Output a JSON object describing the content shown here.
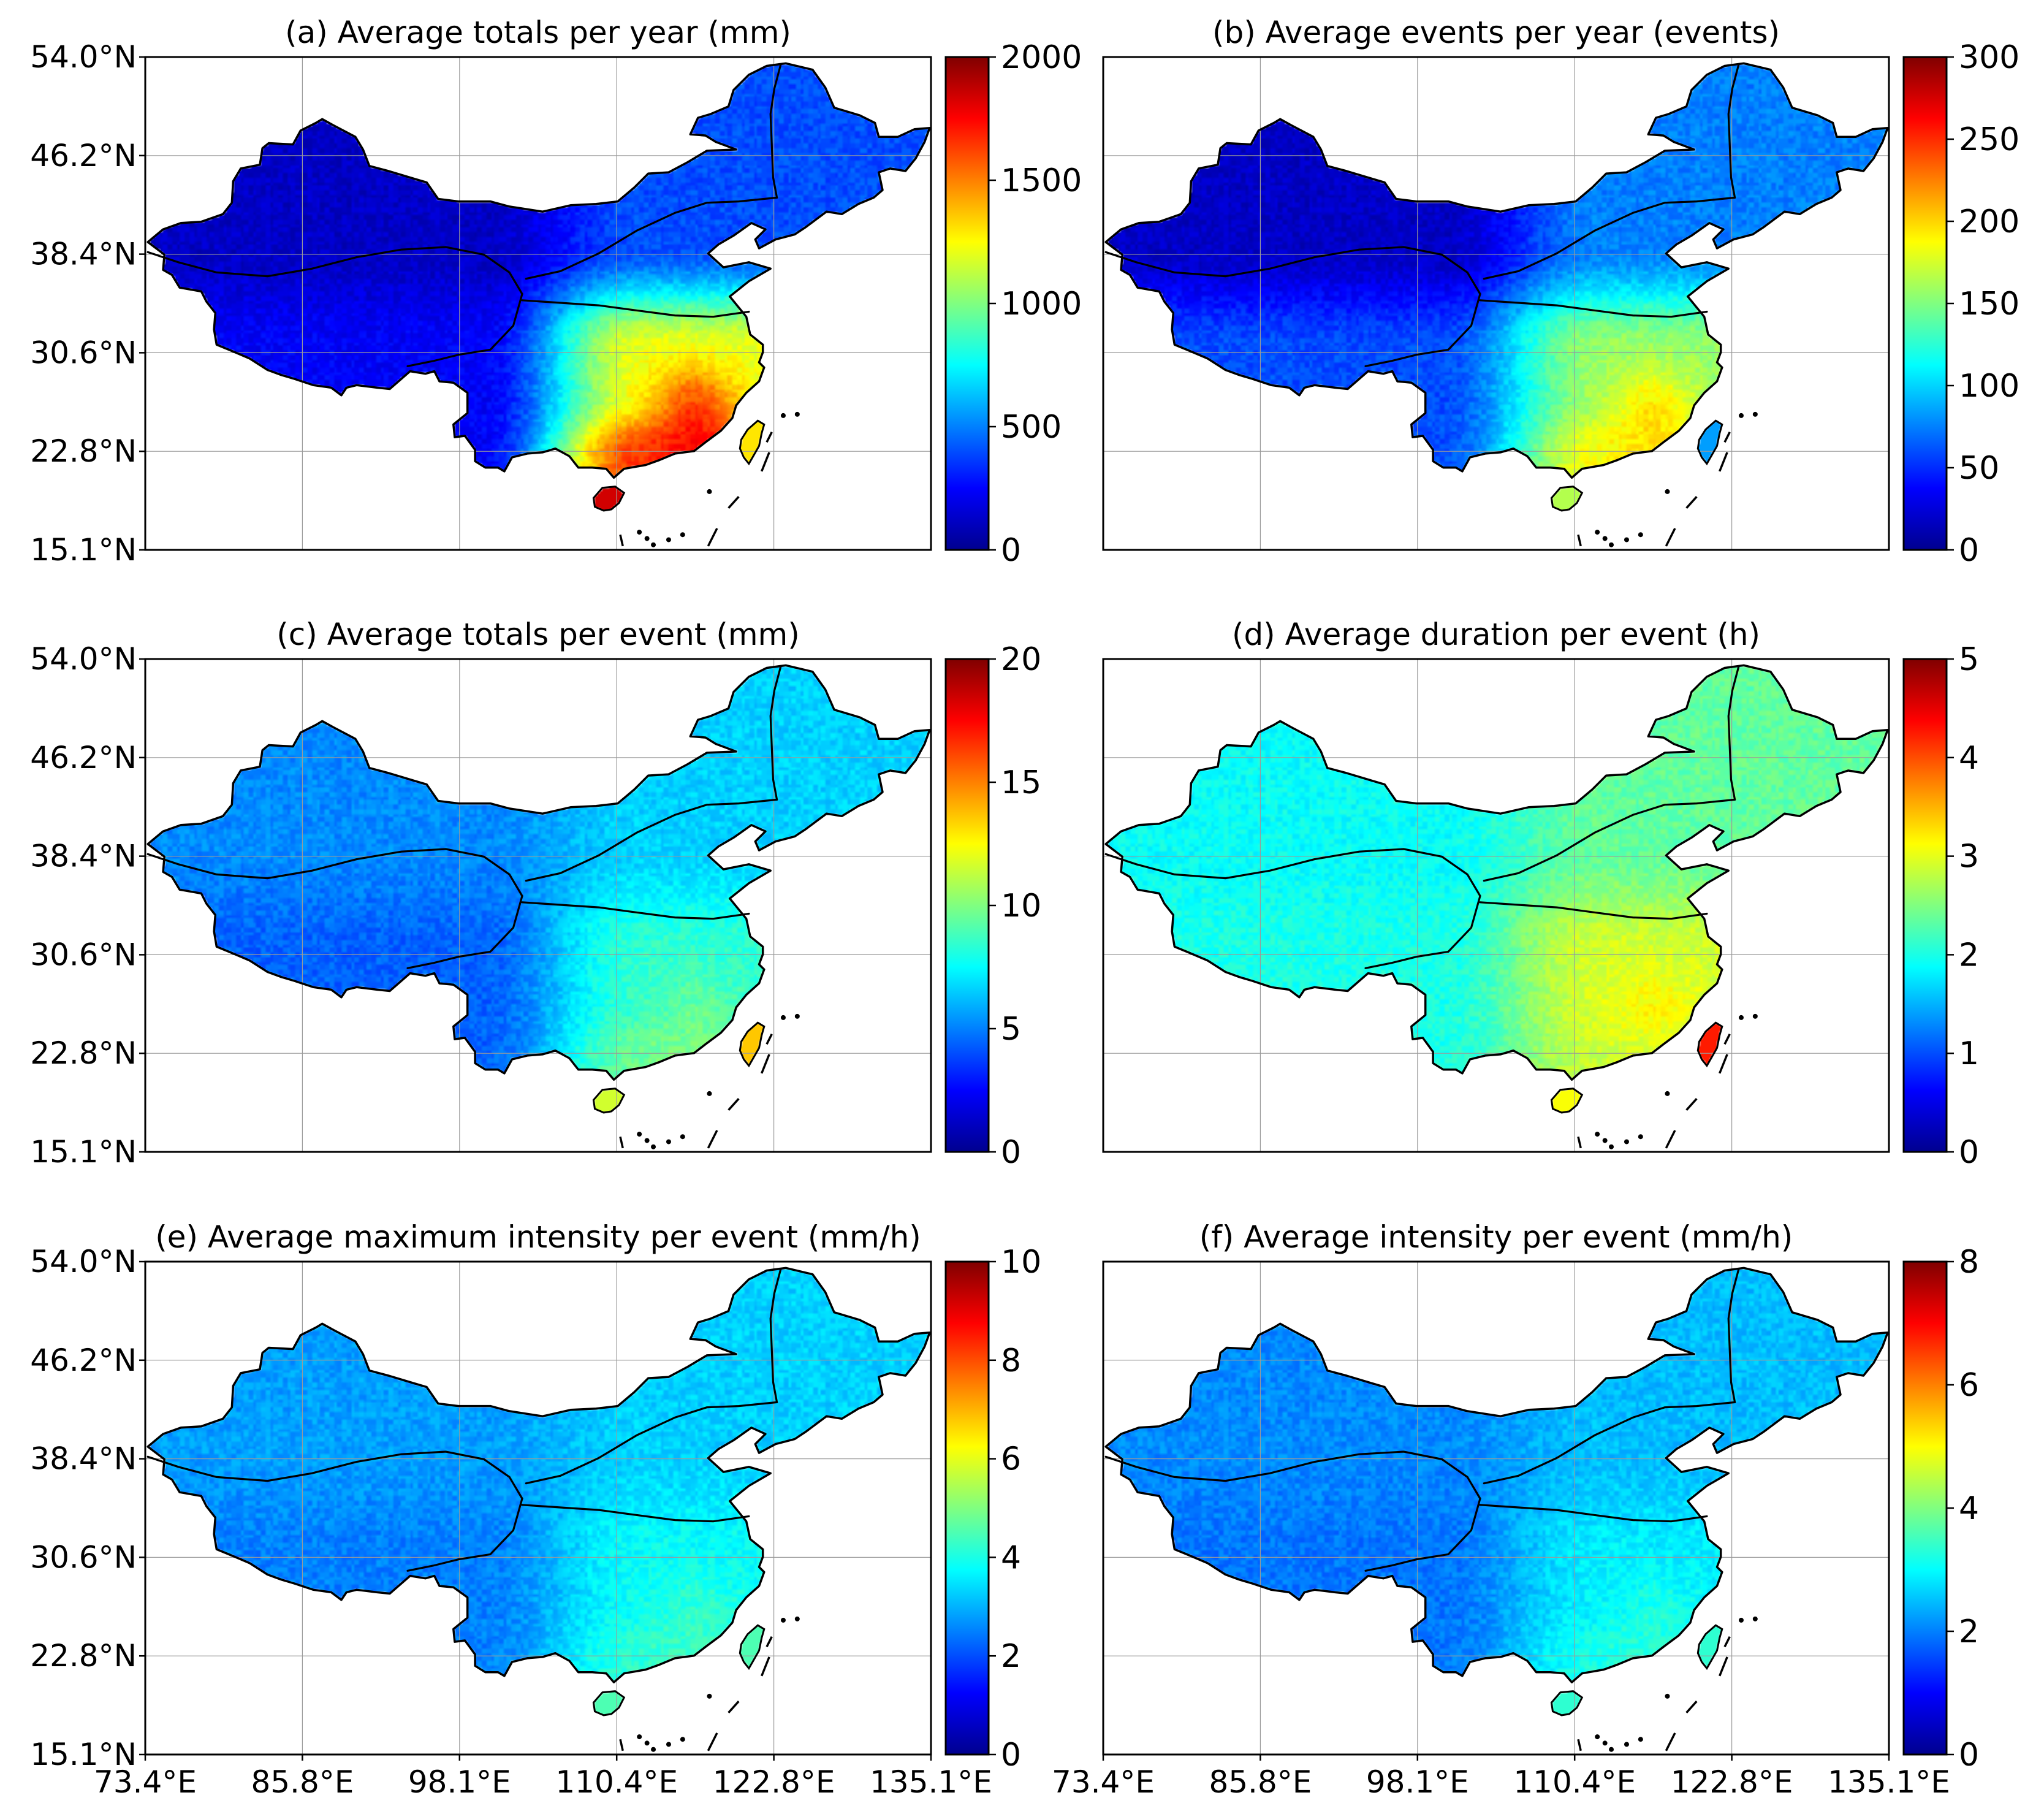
{
  "figure": {
    "colormap": [
      "#00008f",
      "#0000ff",
      "#0080ff",
      "#00ffff",
      "#80ff80",
      "#ffff00",
      "#ff8000",
      "#ff0000",
      "#800000"
    ],
    "lat_ticks": [
      "54.0°N",
      "46.2°N",
      "38.4°N",
      "30.6°N",
      "22.8°N",
      "15.1°N"
    ],
    "lon_ticks": [
      "73.4°E",
      "85.8°E",
      "98.1°E",
      "110.4°E",
      "122.8°E",
      "135.1°E"
    ]
  },
  "chart_data": [
    {
      "type": "heatmap",
      "panel": "a",
      "title": "(a) Average totals per year (mm)",
      "colorbar": {
        "min": 0,
        "max": 2000,
        "ticks": [
          "0",
          "500",
          "1000",
          "1500",
          "2000"
        ]
      },
      "field": {
        "nw": 0.06,
        "tibet": 0.12,
        "ne": 0.2,
        "se": 0.6,
        "south": 0.82,
        "taiwan": 0.65,
        "hainan": 0.92,
        "seHot": 0.2
      }
    },
    {
      "type": "heatmap",
      "panel": "b",
      "title": "(b) Average events per year (events)",
      "colorbar": {
        "min": 0,
        "max": 300,
        "ticks": [
          "0",
          "50",
          "100",
          "150",
          "200",
          "250",
          "300"
        ]
      },
      "field": {
        "nw": 0.06,
        "tibet": 0.2,
        "ne": 0.25,
        "se": 0.52,
        "south": 0.62,
        "taiwan": 0.28,
        "hainan": 0.55,
        "seHot": 0.12
      }
    },
    {
      "type": "heatmap",
      "panel": "c",
      "title": "(c) Average totals per event (mm)",
      "colorbar": {
        "min": 0,
        "max": 20,
        "ticks": [
          "0",
          "5",
          "10",
          "15",
          "20"
        ]
      },
      "field": {
        "nw": 0.26,
        "tibet": 0.22,
        "ne": 0.33,
        "se": 0.42,
        "south": 0.48,
        "taiwan": 0.68,
        "hainan": 0.58,
        "seHot": 0.05
      }
    },
    {
      "type": "heatmap",
      "panel": "d",
      "title": "(d) Average duration per event (h)",
      "colorbar": {
        "min": 0,
        "max": 5,
        "ticks": [
          "0",
          "1",
          "2",
          "3",
          "4",
          "5"
        ]
      },
      "field": {
        "nw": 0.38,
        "tibet": 0.4,
        "ne": 0.47,
        "se": 0.58,
        "south": 0.57,
        "taiwan": 0.85,
        "hainan": 0.62,
        "seHot": 0.05
      }
    },
    {
      "type": "heatmap",
      "panel": "e",
      "title": "(e) Average maximum intensity per event (mm/h)",
      "colorbar": {
        "min": 0,
        "max": 10,
        "ticks": [
          "0",
          "2",
          "4",
          "6",
          "8",
          "10"
        ]
      },
      "field": {
        "nw": 0.28,
        "tibet": 0.25,
        "ne": 0.33,
        "se": 0.38,
        "south": 0.42,
        "taiwan": 0.45,
        "hainan": 0.45,
        "seHot": 0.04
      }
    },
    {
      "type": "heatmap",
      "panel": "f",
      "title": "(f) Average intensity per event (mm/h)",
      "colorbar": {
        "min": 0,
        "max": 8,
        "ticks": [
          "0",
          "2",
          "4",
          "6",
          "8"
        ]
      },
      "field": {
        "nw": 0.26,
        "tibet": 0.24,
        "ne": 0.31,
        "se": 0.36,
        "south": 0.4,
        "taiwan": 0.42,
        "hainan": 0.42,
        "seHot": 0.04
      }
    }
  ]
}
